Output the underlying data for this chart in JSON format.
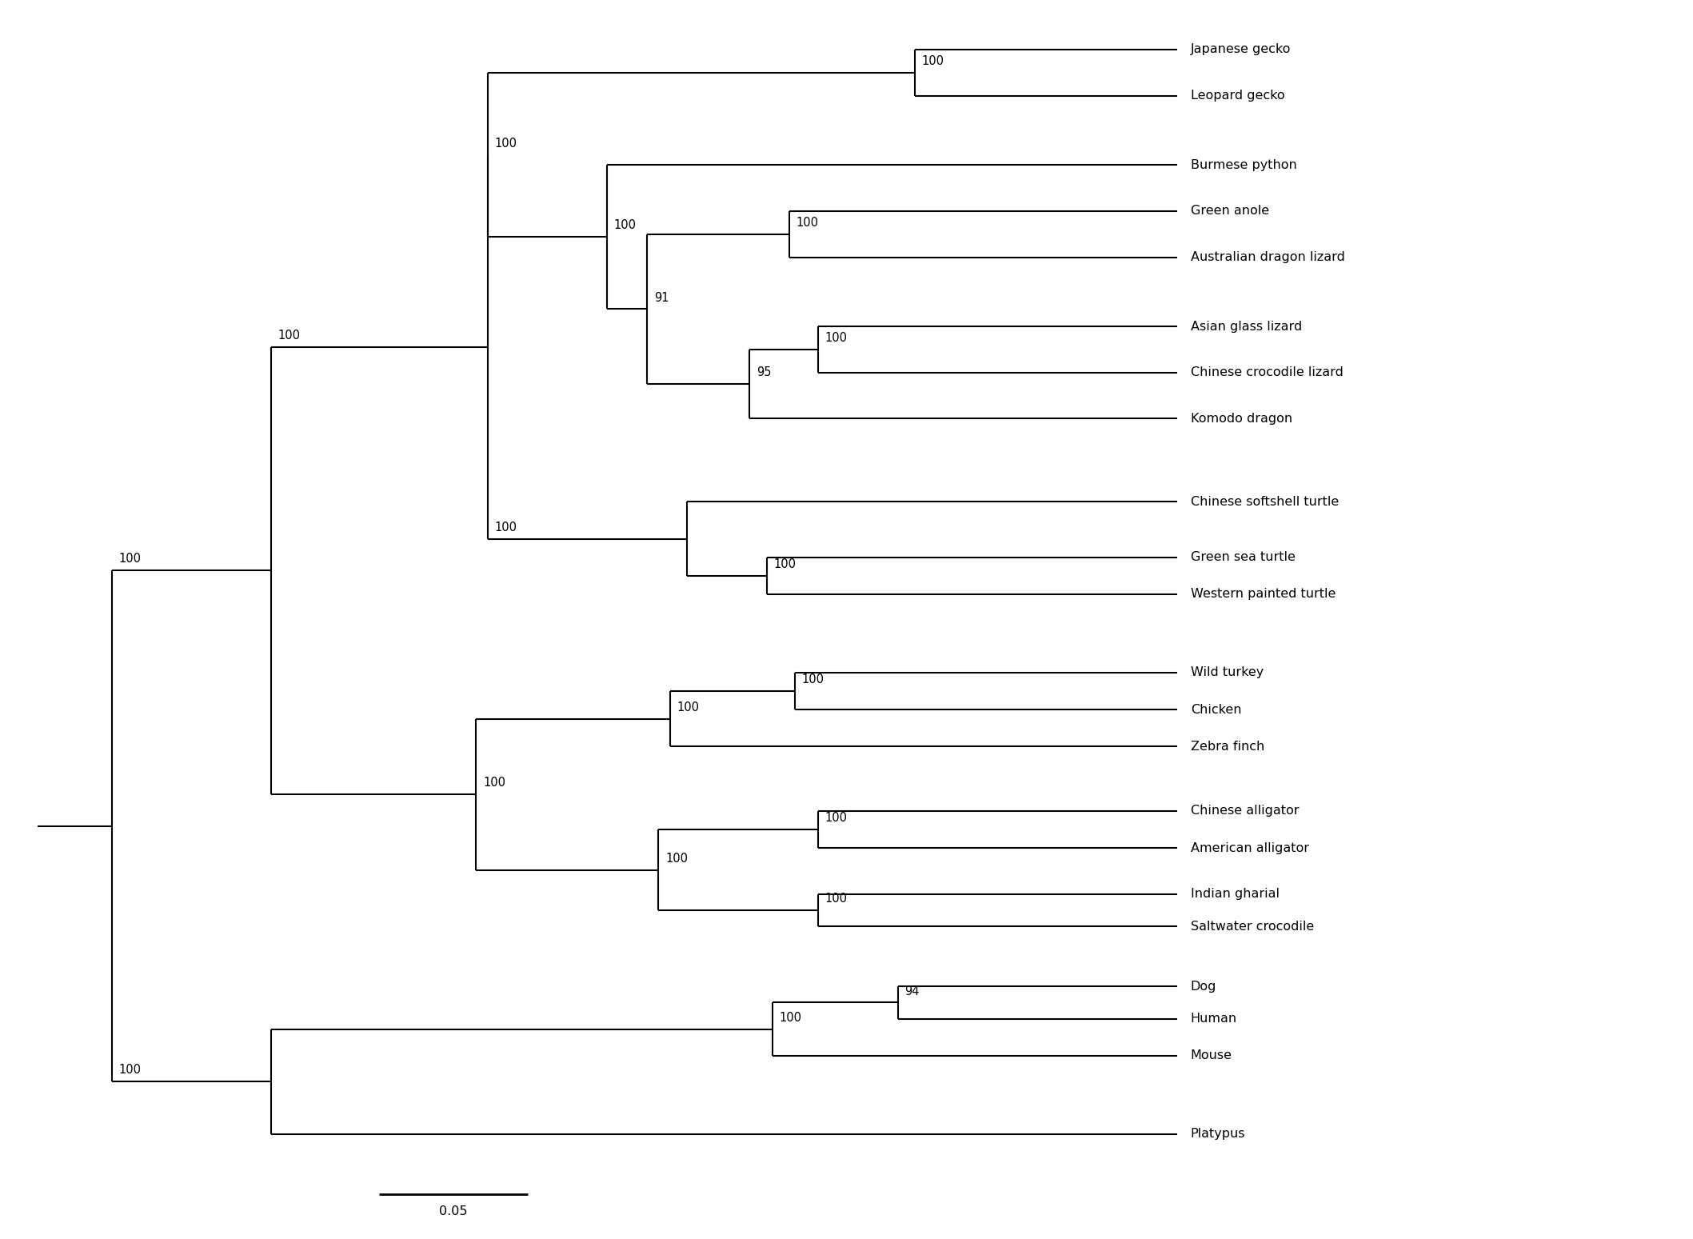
{
  "taxa_top_to_bottom": [
    "Japanese gecko",
    "Leopard gecko",
    "Burmese python",
    "Green anole",
    "Australian dragon lizard",
    "Asian glass lizard",
    "Chinese crocodile lizard",
    "Komodo dragon",
    "Chinese softshell turtle",
    "Green sea turtle",
    "Western painted turtle",
    "Wild turkey",
    "Chicken",
    "Zebra finch",
    "Chinese alligator",
    "American alligator",
    "Indian gharial",
    "Saltwater crocodile",
    "Dog",
    "Human",
    "Mouse",
    "Platypus"
  ],
  "background_color": "#ffffff",
  "line_color": "#000000",
  "text_color": "#000000",
  "font_size": 11.5,
  "bootstrap_font_size": 10.5,
  "scale_bar_label": "0.05"
}
